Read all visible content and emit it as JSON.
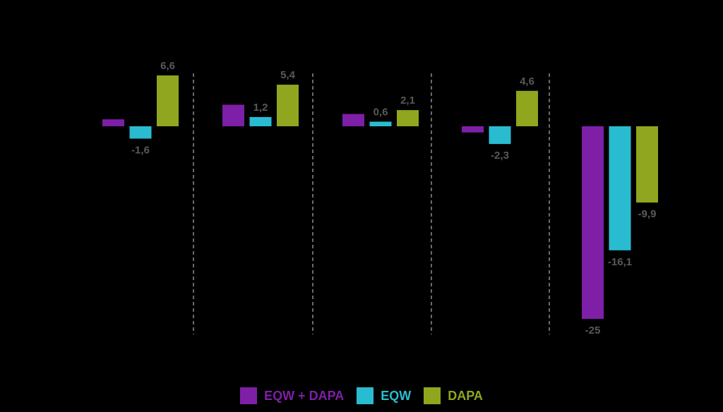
{
  "chart_data": {
    "type": "bar",
    "categories": [
      "",
      "",
      "",
      "",
      ""
    ],
    "series": [
      {
        "name": "EQW + DAPA",
        "color": "#7E1FA8",
        "values": [
          null,
          null,
          null,
          null,
          -25
        ],
        "labels": [
          "",
          "",
          "",
          "",
          "-25"
        ]
      },
      {
        "name": "EQW",
        "color": "#29BCD0",
        "values": [
          -1.6,
          1.2,
          0.6,
          -2.3,
          -16.1
        ],
        "labels": [
          "-1,6",
          "1,2",
          "0,6",
          "-2,3",
          "-16,1"
        ]
      },
      {
        "name": "DAPA",
        "color": "#8FA61E",
        "values": [
          6.6,
          5.4,
          2.1,
          4.6,
          -9.9
        ],
        "labels": [
          "6,6",
          "5,4",
          "2,1",
          "4,6",
          "-9,9"
        ]
      }
    ],
    "unlabeled_values": {
      "EQW + DAPA": [
        0.9,
        2.8,
        1.6,
        -0.8
      ]
    },
    "ylim": [
      -25,
      6.6
    ],
    "grid": false,
    "group_separators": "dashed",
    "legend": "bottom-center"
  }
}
